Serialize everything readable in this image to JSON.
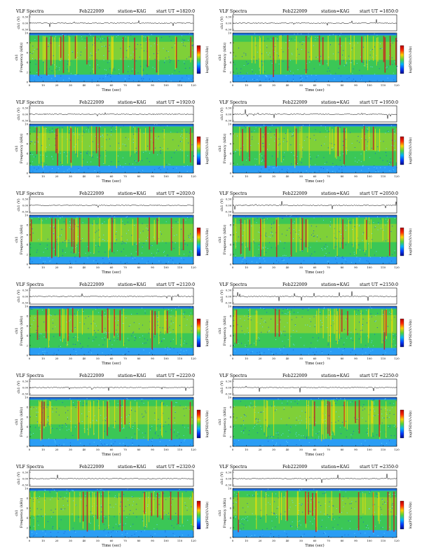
{
  "page_title": "VLF Spectra",
  "colors": {
    "spectrogram_low": "#2a9df4",
    "spectrogram_mid": "#3ecf3a",
    "spectrogram_high": "#ffe100",
    "spectrogram_peak": "#c81e1e",
    "colorbar": [
      "#b40000",
      "#ff2a00",
      "#ffd200",
      "#53d63a",
      "#00b4ff",
      "#003cff",
      "#000a8c"
    ]
  },
  "chart_data": [
    {
      "type": "heatmap",
      "header": {
        "title": "VLF Spectra",
        "date": "Feb222009",
        "station": "station=KAG",
        "start": "start UT =1820:0"
      },
      "channel_ylabel": "ch1 (V)",
      "channel_yticks": [
        "0.30",
        "0.00",
        "-0.30"
      ],
      "ylabel_top": "ch1",
      "ylabel": "Frequency (kHz)",
      "xlabel": "Time (sec)",
      "xlim": [
        0,
        120
      ],
      "ylim": [
        0,
        10
      ],
      "xticks": [
        "0",
        "10",
        "20",
        "30",
        "40",
        "50",
        "60",
        "70",
        "80",
        "90",
        "100",
        "110",
        "120"
      ],
      "yticks": [
        "0",
        "2",
        "4",
        "6",
        "8",
        "10"
      ],
      "colorbar_label": "log(PSD)(V/√Hz)"
    },
    {
      "type": "heatmap",
      "header": {
        "title": "VLF Spectra",
        "date": "Feb222009",
        "station": "station=KAG",
        "start": "start UT =1850:0"
      },
      "channel_ylabel": "ch1 (V)",
      "channel_yticks": [
        "0.30",
        "0.00",
        "-0.30"
      ],
      "ylabel_top": "ch1",
      "ylabel": "Frequency (kHz)",
      "xlabel": "Time (sec)",
      "xlim": [
        0,
        120
      ],
      "ylim": [
        0,
        10
      ],
      "xticks": [
        "0",
        "10",
        "20",
        "30",
        "40",
        "50",
        "60",
        "70",
        "80",
        "90",
        "100",
        "110",
        "120"
      ],
      "yticks": [
        "0",
        "2",
        "4",
        "6",
        "8",
        "10"
      ],
      "colorbar_label": "log(PSD)(V/√Hz)"
    },
    {
      "type": "heatmap",
      "header": {
        "title": "VLF Spectra",
        "date": "Feb222009",
        "station": "station=KAG",
        "start": "start UT =1920:0"
      },
      "channel_ylabel": "ch1 (V)",
      "channel_yticks": [
        "0.30",
        "0.00",
        "-0.30"
      ],
      "ylabel_top": "ch1",
      "ylabel": "Frequency (kHz)",
      "xlabel": "Time (sec)",
      "xlim": [
        0,
        120
      ],
      "ylim": [
        0,
        10
      ],
      "xticks": [
        "0",
        "10",
        "20",
        "30",
        "40",
        "50",
        "60",
        "70",
        "80",
        "90",
        "100",
        "110",
        "120"
      ],
      "yticks": [
        "0",
        "2",
        "4",
        "6",
        "8",
        "10"
      ],
      "colorbar_label": "log(PSD)(V/√Hz)"
    },
    {
      "type": "heatmap",
      "header": {
        "title": "VLF Spectra",
        "date": "Feb222009",
        "station": "station=KAG",
        "start": "start UT =1950:0"
      },
      "channel_ylabel": "ch1 (V)",
      "channel_yticks": [
        "0.30",
        "0.00",
        "-0.30"
      ],
      "ylabel_top": "ch1",
      "ylabel": "Frequency (kHz)",
      "xlabel": "Time (sec)",
      "xlim": [
        0,
        120
      ],
      "ylim": [
        0,
        10
      ],
      "xticks": [
        "0",
        "10",
        "20",
        "30",
        "40",
        "50",
        "60",
        "70",
        "80",
        "90",
        "100",
        "110",
        "120"
      ],
      "yticks": [
        "0",
        "2",
        "4",
        "6",
        "8",
        "10"
      ],
      "colorbar_label": "log(PSD)(V/√Hz)"
    },
    {
      "type": "heatmap",
      "header": {
        "title": "VLF Spectra",
        "date": "Feb222009",
        "station": "station=KAG",
        "start": "start UT =2020:0"
      },
      "channel_ylabel": "ch1 (V)",
      "channel_yticks": [
        "0.30",
        "0.00",
        "-0.30"
      ],
      "ylabel_top": "ch1",
      "ylabel": "Frequency (kHz)",
      "xlabel": "Time (sec)",
      "xlim": [
        0,
        120
      ],
      "ylim": [
        0,
        10
      ],
      "xticks": [
        "0",
        "10",
        "20",
        "30",
        "40",
        "50",
        "60",
        "70",
        "80",
        "90",
        "100",
        "110",
        "120"
      ],
      "yticks": [
        "0",
        "2",
        "4",
        "6",
        "8",
        "10"
      ],
      "colorbar_label": "log(PSD)(V/√Hz)"
    },
    {
      "type": "heatmap",
      "header": {
        "title": "VLF Spectra",
        "date": "Feb222009",
        "station": "station=KAG",
        "start": "start UT =2050:0"
      },
      "channel_ylabel": "ch1 (V)",
      "channel_yticks": [
        "0.30",
        "0.00",
        "-0.30"
      ],
      "ylabel_top": "ch1",
      "ylabel": "Frequency (kHz)",
      "xlabel": "Time (sec)",
      "xlim": [
        0,
        120
      ],
      "ylim": [
        0,
        10
      ],
      "xticks": [
        "0",
        "10",
        "20",
        "30",
        "40",
        "50",
        "60",
        "70",
        "80",
        "90",
        "100",
        "110",
        "120"
      ],
      "yticks": [
        "0",
        "2",
        "4",
        "6",
        "8",
        "10"
      ],
      "colorbar_label": "log(PSD)(V/√Hz)"
    },
    {
      "type": "heatmap",
      "header": {
        "title": "VLF Spectra",
        "date": "Feb222009",
        "station": "station=KAG",
        "start": "start UT =2120:0"
      },
      "channel_ylabel": "ch1 (V)",
      "channel_yticks": [
        "0.30",
        "0.00",
        "-0.30"
      ],
      "ylabel_top": "ch1",
      "ylabel": "Frequency (kHz)",
      "xlabel": "Time (sec)",
      "xlim": [
        0,
        120
      ],
      "ylim": [
        0,
        10
      ],
      "xticks": [
        "0",
        "10",
        "20",
        "30",
        "40",
        "50",
        "60",
        "70",
        "80",
        "90",
        "100",
        "110",
        "120"
      ],
      "yticks": [
        "0",
        "2",
        "4",
        "6",
        "8",
        "10"
      ],
      "colorbar_label": "log(PSD)(V/√Hz)"
    },
    {
      "type": "heatmap",
      "header": {
        "title": "VLF Spectra",
        "date": "Feb222009",
        "station": "station=KAG",
        "start": "start UT =2150:0"
      },
      "channel_ylabel": "ch1 (V)",
      "channel_yticks": [
        "0.30",
        "0.00",
        "-0.30"
      ],
      "ylabel_top": "ch1",
      "ylabel": "Frequency (kHz)",
      "xlabel": "Time (sec)",
      "xlim": [
        0,
        120
      ],
      "ylim": [
        0,
        10
      ],
      "xticks": [
        "0",
        "10",
        "20",
        "30",
        "40",
        "50",
        "60",
        "70",
        "80",
        "90",
        "100",
        "110",
        "120"
      ],
      "yticks": [
        "0",
        "2",
        "4",
        "6",
        "8",
        "10"
      ],
      "colorbar_label": "log(PSD)(V/√Hz)"
    },
    {
      "type": "heatmap",
      "header": {
        "title": "VLF Spectra",
        "date": "Feb222009",
        "station": "station=KAG",
        "start": "start UT =2220:0"
      },
      "channel_ylabel": "ch1 (V)",
      "channel_yticks": [
        "0.30",
        "0.00",
        "-0.30"
      ],
      "ylabel_top": "ch1",
      "ylabel": "Frequency (kHz)",
      "xlabel": "Time (sec)",
      "xlim": [
        0,
        120
      ],
      "ylim": [
        0,
        10
      ],
      "xticks": [
        "0",
        "10",
        "20",
        "30",
        "40",
        "50",
        "60",
        "70",
        "80",
        "90",
        "100",
        "110",
        "120"
      ],
      "yticks": [
        "0",
        "2",
        "4",
        "6",
        "8",
        "10"
      ],
      "colorbar_label": "log(PSD)(V/√Hz)"
    },
    {
      "type": "heatmap",
      "header": {
        "title": "VLF Spectra",
        "date": "Feb222009",
        "station": "station=KAG",
        "start": "start UT =2250:0"
      },
      "channel_ylabel": "ch1 (V)",
      "channel_yticks": [
        "0.30",
        "0.00",
        "-0.30"
      ],
      "ylabel_top": "ch1",
      "ylabel": "Frequency (kHz)",
      "xlabel": "Time (sec)",
      "xlim": [
        0,
        120
      ],
      "ylim": [
        0,
        10
      ],
      "xticks": [
        "0",
        "10",
        "20",
        "30",
        "40",
        "50",
        "60",
        "70",
        "80",
        "90",
        "100",
        "110",
        "120"
      ],
      "yticks": [
        "0",
        "2",
        "4",
        "6",
        "8",
        "10"
      ],
      "colorbar_label": "log(PSD)(V/√Hz)"
    },
    {
      "type": "heatmap",
      "header": {
        "title": "VLF Spectra",
        "date": "Feb222009",
        "station": "station=KAG",
        "start": "start UT =2320:0"
      },
      "channel_ylabel": "ch1 (V)",
      "channel_yticks": [
        "0.30",
        "0.00",
        "-0.30"
      ],
      "ylabel_top": "ch1",
      "ylabel": "Frequency (kHz)",
      "xlabel": "Time (sec)",
      "xlim": [
        0,
        120
      ],
      "ylim": [
        0,
        10
      ],
      "xticks": [
        "0",
        "10",
        "20",
        "30",
        "40",
        "50",
        "60",
        "70",
        "80",
        "90",
        "100",
        "110",
        "120"
      ],
      "yticks": [
        "0",
        "2",
        "4",
        "6",
        "8",
        "10"
      ],
      "colorbar_label": "log(PSD)(V/√Hz)"
    },
    {
      "type": "heatmap",
      "header": {
        "title": "VLF Spectra",
        "date": "Feb222009",
        "station": "station=KAG",
        "start": "start UT =2350:0"
      },
      "channel_ylabel": "ch1 (V)",
      "channel_yticks": [
        "0.30",
        "0.00",
        "-0.30"
      ],
      "ylabel_top": "ch1",
      "ylabel": "Frequency (kHz)",
      "xlabel": "Time (sec)",
      "xlim": [
        0,
        120
      ],
      "ylim": [
        0,
        10
      ],
      "xticks": [
        "0",
        "10",
        "20",
        "30",
        "40",
        "50",
        "60",
        "70",
        "80",
        "90",
        "100",
        "110",
        "120"
      ],
      "yticks": [
        "0",
        "2",
        "4",
        "6",
        "8",
        "10"
      ],
      "colorbar_label": "log(PSD)(V/√Hz)"
    }
  ]
}
